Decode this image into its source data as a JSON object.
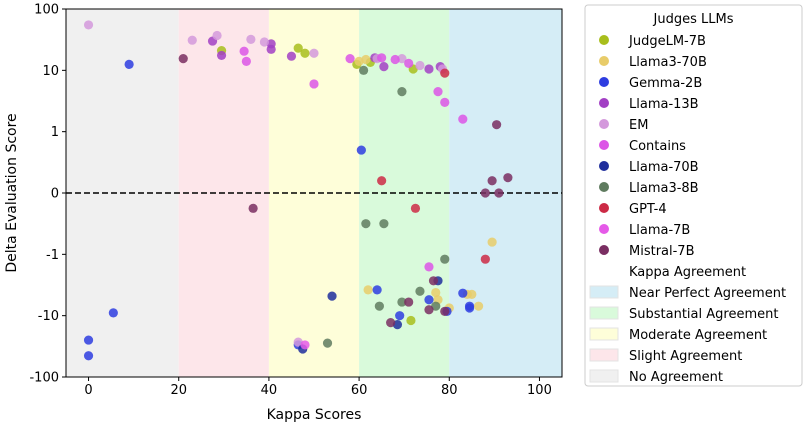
{
  "chart_data": {
    "type": "scatter",
    "xlabel": "Kappa Scores",
    "ylabel": "Delta Evaluation Score",
    "xlim": [
      -5,
      105
    ],
    "y_scale": "symlog",
    "x_ticks": [
      0,
      20,
      40,
      60,
      80,
      100
    ],
    "y_ticks": [
      {
        "value": 100,
        "label": "100"
      },
      {
        "value": 10,
        "label": "10"
      },
      {
        "value": 1,
        "label": "1"
      },
      {
        "value": 0,
        "label": "0"
      },
      {
        "value": -1,
        "label": "-1"
      },
      {
        "value": -10,
        "label": "-10"
      },
      {
        "value": -100,
        "label": "-100"
      }
    ],
    "reference_line": {
      "y": 0,
      "style": "dashed"
    },
    "bands": [
      {
        "name": "No Agreement",
        "x_range": [
          -5,
          20
        ],
        "color": "#f0f0f0"
      },
      {
        "name": "Slight Agreement",
        "x_range": [
          20,
          40
        ],
        "color": "#fde6ea"
      },
      {
        "name": "Moderate Agreement",
        "x_range": [
          40,
          60
        ],
        "color": "#fefed9"
      },
      {
        "name": "Substantial Agreement",
        "x_range": [
          60,
          80
        ],
        "color": "#d9fadb"
      },
      {
        "name": "Near Perfect Agreement",
        "x_range": [
          80,
          105
        ],
        "color": "#d5edf6"
      }
    ],
    "legend": {
      "placement": "outside-right",
      "title": "Judges LLMs",
      "bands_title": "Kappa Agreement"
    },
    "series": [
      {
        "name": "JudgeLM-7B",
        "color": "#a8be1c",
        "points": [
          [
            29.5,
            21
          ],
          [
            46.5,
            23
          ],
          [
            48,
            19
          ],
          [
            59.5,
            12.5
          ],
          [
            62.5,
            13.5
          ],
          [
            72,
            10.5
          ],
          [
            71.5,
            -12
          ]
        ]
      },
      {
        "name": "Llama3-70B",
        "color": "#e8cc6a",
        "points": [
          [
            60,
            14
          ],
          [
            61.5,
            15
          ],
          [
            62,
            -3.8
          ],
          [
            77,
            -4.2
          ],
          [
            77.5,
            -5.5
          ],
          [
            80,
            -7.5
          ],
          [
            84,
            -4.5
          ],
          [
            85,
            -4.5
          ],
          [
            86.5,
            -7
          ],
          [
            89.5,
            -0.8
          ]
        ]
      },
      {
        "name": "Gemma-2B",
        "color": "#2e3de0",
        "points": [
          [
            9,
            12.5
          ],
          [
            5.5,
            -9
          ],
          [
            0,
            -25
          ],
          [
            0,
            -45
          ],
          [
            60.5,
            0.7
          ],
          [
            64,
            -3.8
          ],
          [
            69,
            -10
          ],
          [
            75.5,
            -5.5
          ],
          [
            79.5,
            -8.5
          ],
          [
            83,
            -4.3
          ],
          [
            84.5,
            -7
          ],
          [
            84.5,
            -7.5
          ],
          [
            46.5,
            -30
          ]
        ]
      },
      {
        "name": "Llama-13B",
        "color": "#a23fc4",
        "points": [
          [
            27.5,
            30
          ],
          [
            29.5,
            17.5
          ],
          [
            40.5,
            27
          ],
          [
            40.5,
            22
          ],
          [
            45,
            17
          ],
          [
            63.5,
            16
          ],
          [
            65.5,
            11.5
          ],
          [
            75.5,
            10.5
          ],
          [
            78,
            11.5
          ]
        ]
      },
      {
        "name": "EM",
        "color": "#d499dc",
        "points": [
          [
            0,
            55
          ],
          [
            23,
            31
          ],
          [
            28.5,
            37
          ],
          [
            36,
            32
          ],
          [
            39,
            29
          ],
          [
            50,
            19
          ],
          [
            64,
            15.5
          ],
          [
            69.5,
            15.5
          ],
          [
            73.5,
            12
          ],
          [
            78.5,
            10.5
          ],
          [
            46.5,
            -27
          ]
        ]
      },
      {
        "name": "Contains",
        "color": "#dc55e6",
        "points": [
          [
            34.5,
            20.5
          ],
          [
            35,
            14
          ],
          [
            50,
            6
          ],
          [
            58,
            15.5
          ],
          [
            65,
            16
          ],
          [
            68,
            15
          ],
          [
            71,
            13
          ],
          [
            77.5,
            4.5
          ],
          [
            79,
            3
          ],
          [
            83,
            1.6
          ],
          [
            75.5,
            -1.6
          ]
        ]
      },
      {
        "name": "Llama-70B",
        "color": "#1f2e9c",
        "points": [
          [
            54,
            -4.8
          ],
          [
            68.5,
            -14
          ],
          [
            77.5,
            -2.7
          ],
          [
            47.5,
            -35
          ]
        ]
      },
      {
        "name": "Llama3-8B",
        "color": "#5f7b5f",
        "points": [
          [
            61,
            10
          ],
          [
            65.5,
            -0.5
          ],
          [
            69.5,
            4.5
          ],
          [
            61.5,
            -0.5
          ],
          [
            64.5,
            -7
          ],
          [
            69.5,
            -6
          ],
          [
            73.5,
            -4
          ],
          [
            77,
            -7
          ],
          [
            79,
            -1.2
          ],
          [
            53,
            -28
          ]
        ]
      },
      {
        "name": "GPT-4",
        "color": "#cc2a45",
        "points": [
          [
            65,
            0.2
          ],
          [
            72.5,
            -0.25
          ],
          [
            79,
            9
          ],
          [
            88,
            -1.2
          ]
        ]
      },
      {
        "name": "Llama-7B",
        "color": "#e55ae8",
        "points": [
          [
            48,
            -30
          ]
        ]
      },
      {
        "name": "Mistral-7B",
        "color": "#7a2e62",
        "points": [
          [
            36.5,
            -0.25
          ],
          [
            67,
            -13
          ],
          [
            71,
            -6
          ],
          [
            75.5,
            -8
          ],
          [
            79,
            -8.5
          ],
          [
            88,
            0
          ],
          [
            89.5,
            0.2
          ],
          [
            91,
            0
          ],
          [
            93,
            0.25
          ],
          [
            90.5,
            1.3
          ],
          [
            76.5,
            -2.7
          ],
          [
            21,
            15.5
          ]
        ]
      }
    ]
  }
}
